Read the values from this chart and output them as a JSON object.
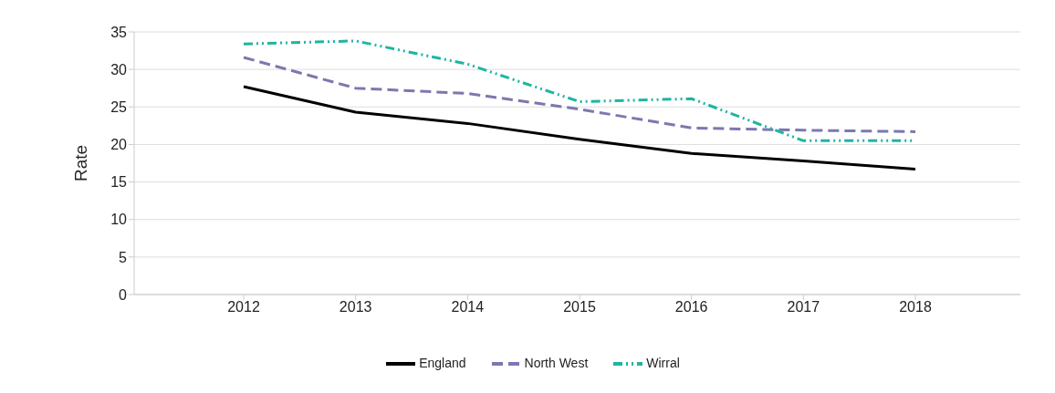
{
  "chart_data": {
    "type": "line",
    "ylabel": "Rate",
    "categories": [
      "2012",
      "2013",
      "2014",
      "2015",
      "2016",
      "2017",
      "2018"
    ],
    "series": [
      {
        "name": "England",
        "color": "#000000",
        "line_style": "solid",
        "values": [
          27.7,
          24.3,
          22.8,
          20.7,
          18.8,
          17.8,
          16.7
        ]
      },
      {
        "name": "North West",
        "color": "#7b78b0",
        "line_style": "dashed",
        "values": [
          31.6,
          27.5,
          26.8,
          24.7,
          22.2,
          21.9,
          21.7
        ]
      },
      {
        "name": "Wirral",
        "color": "#1fb5a0",
        "line_style": "dashdot",
        "values": [
          33.4,
          33.8,
          30.7,
          25.7,
          26.1,
          20.5,
          20.5
        ]
      }
    ],
    "ylim": [
      0,
      35
    ],
    "yticks": [
      0,
      5,
      10,
      15,
      20,
      25,
      30,
      35
    ],
    "grid": "y",
    "legend": "bottom",
    "marker": "none"
  }
}
